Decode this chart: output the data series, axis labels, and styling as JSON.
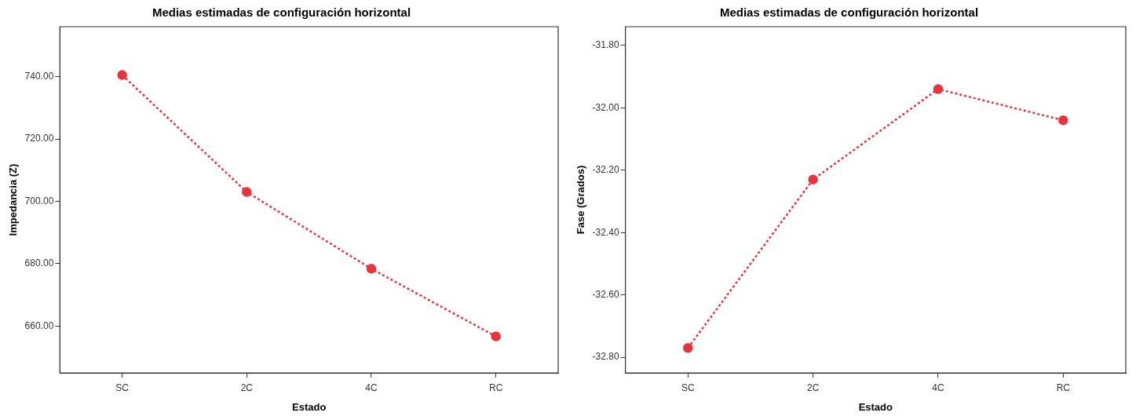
{
  "chart_data": [
    {
      "type": "line",
      "title": "Medias estimadas de configuración horizontal",
      "xlabel": "Estado",
      "ylabel": "Impedancia (Z)",
      "categories": [
        "SC",
        "2C",
        "4C",
        "RC"
      ],
      "series": [
        {
          "color": "#e8343c",
          "values": [
            740.5,
            703.0,
            678.4,
            656.7
          ]
        }
      ],
      "ylim": [
        645,
        756
      ],
      "yticks": [
        {
          "value": 660,
          "label": "660.00"
        },
        {
          "value": 680,
          "label": "680.00"
        },
        {
          "value": 700,
          "label": "700.00"
        },
        {
          "value": 720,
          "label": "720.00"
        },
        {
          "value": 740,
          "label": "740.00"
        }
      ],
      "grid": false,
      "legend": false,
      "marker": "circle",
      "line_style": "dotted"
    },
    {
      "type": "line",
      "title": "Medias estimadas de configuración horizontal",
      "xlabel": "Estado",
      "ylabel": "Fase (Grados)",
      "categories": [
        "SC",
        "2C",
        "4C",
        "RC"
      ],
      "series": [
        {
          "color": "#e8343c",
          "values": [
            -32.77,
            -32.23,
            -31.94,
            -32.04
          ]
        }
      ],
      "ylim": [
        -32.85,
        -31.74
      ],
      "yticks": [
        {
          "value": -32.8,
          "label": "-32.80"
        },
        {
          "value": -32.6,
          "label": "-32.60"
        },
        {
          "value": -32.4,
          "label": "-32.40"
        },
        {
          "value": -32.2,
          "label": "-32.20"
        },
        {
          "value": -32.0,
          "label": "-32.00"
        },
        {
          "value": -31.8,
          "label": "-31.80"
        }
      ],
      "grid": false,
      "legend": false,
      "marker": "circle",
      "line_style": "dotted"
    }
  ]
}
